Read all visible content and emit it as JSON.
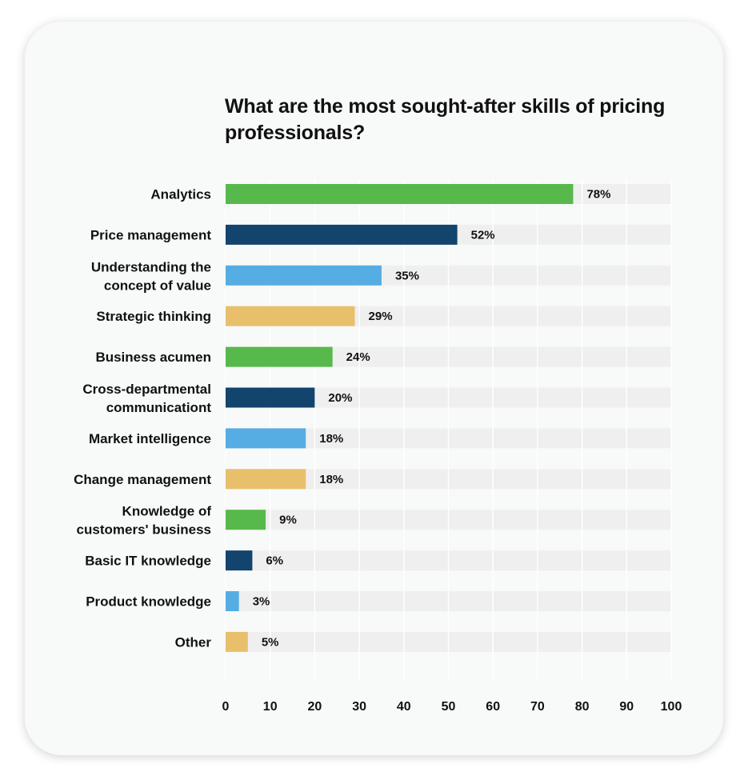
{
  "card": {
    "background": "#f8f9f9"
  },
  "chart_data": {
    "type": "bar",
    "orientation": "horizontal",
    "title": "What are the most sought-after skills of pricing professionals?",
    "xlabel": "",
    "ylabel": "",
    "xlim": [
      0,
      100
    ],
    "x_ticks": [
      0,
      10,
      20,
      30,
      40,
      50,
      60,
      70,
      80,
      90,
      100
    ],
    "grid": true,
    "track_color": "#efefef",
    "categories": [
      [
        "Analytics"
      ],
      [
        "Price management"
      ],
      [
        "Understanding the",
        "concept of value"
      ],
      [
        "Strategic thinking"
      ],
      [
        "Business acumen"
      ],
      [
        "Cross-departmental",
        "communicationt"
      ],
      [
        "Market intelligence"
      ],
      [
        "Change management"
      ],
      [
        "Knowledge of",
        "customers' business"
      ],
      [
        "Basic IT knowledge"
      ],
      [
        "Product knowledge"
      ],
      [
        "Other"
      ]
    ],
    "values": [
      78,
      52,
      35,
      29,
      24,
      20,
      18,
      18,
      9,
      6,
      3,
      5
    ],
    "value_labels": [
      "78%",
      "52%",
      "35%",
      "29%",
      "24%",
      "20%",
      "18%",
      "18%",
      "9%",
      "6%",
      "3%",
      "5%"
    ],
    "colors": [
      "#57b94b",
      "#12446e",
      "#56ade3",
      "#e8c06c",
      "#57b94b",
      "#12446e",
      "#56ade3",
      "#e8c06c",
      "#57b94b",
      "#12446e",
      "#56ade3",
      "#e8c06c"
    ]
  }
}
